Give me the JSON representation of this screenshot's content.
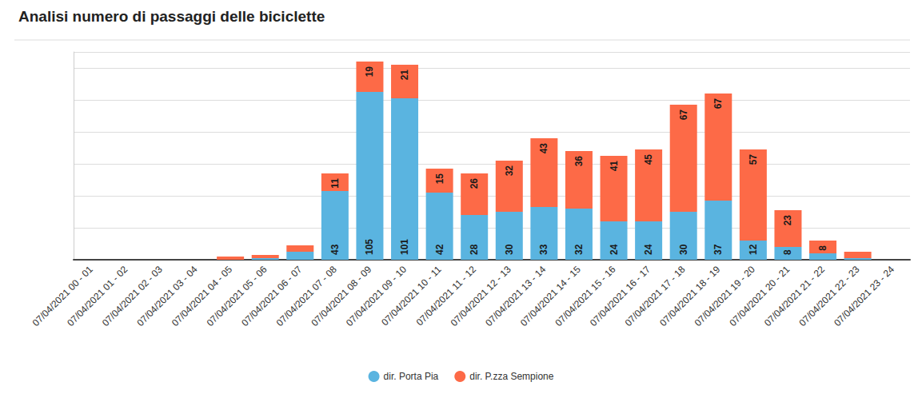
{
  "chart_data": {
    "type": "bar",
    "title": "Analisi numero di passaggi delle biciclette",
    "categories": [
      "07/04/2021 00 - 01",
      "07/04/2021 01 - 02",
      "07/04/2021 02 - 03",
      "07/04/2021 03 - 04",
      "07/04/2021 04 - 05",
      "07/04/2021 05 - 06",
      "07/04/2021 06 - 07",
      "07/04/2021 07 - 08",
      "07/04/2021 08 - 09",
      "07/04/2021 09 - 10",
      "07/04/2021 10 - 11",
      "07/04/2021 11 - 12",
      "07/04/2021 12 - 13",
      "07/04/2021 13 - 14",
      "07/04/2021 14 - 15",
      "07/04/2021 15 - 16",
      "07/04/2021 16 - 17",
      "07/04/2021 17 - 18",
      "07/04/2021 18 - 19",
      "07/04/2021 19 - 20",
      "07/04/2021 20 - 21",
      "07/04/2021 21 - 22",
      "07/04/2021 22 - 23",
      "07/04/2021 23 - 24"
    ],
    "series": [
      {
        "name": "dir. Porta Pia",
        "color": "#5ab4e0",
        "values": [
          0,
          0,
          0,
          0,
          0,
          1,
          5,
          43,
          105,
          101,
          42,
          28,
          30,
          33,
          32,
          24,
          24,
          30,
          37,
          12,
          8,
          4,
          1,
          0
        ],
        "value_labels": [
          null,
          null,
          null,
          null,
          null,
          null,
          null,
          "43",
          "105",
          "101",
          "42",
          "28",
          "30",
          "33",
          "32",
          "24",
          "24",
          "30",
          "37",
          "12",
          "8",
          null,
          null,
          null
        ]
      },
      {
        "name": "dir. P.zza Sempione",
        "color": "#fd6a47",
        "values": [
          0,
          0,
          0,
          0,
          2,
          2,
          4,
          11,
          19,
          21,
          15,
          26,
          32,
          43,
          36,
          41,
          45,
          67,
          67,
          57,
          23,
          8,
          4,
          0
        ],
        "value_labels": [
          null,
          null,
          null,
          null,
          null,
          null,
          null,
          "11",
          "19",
          "21",
          "15",
          "26",
          "32",
          "43",
          "36",
          "41",
          "45",
          "67",
          "67",
          "57",
          "23",
          "8",
          null,
          null
        ]
      }
    ],
    "ylim": [
      0,
      130
    ],
    "yticks": [
      0,
      20,
      40,
      60,
      80,
      100,
      120
    ],
    "grid": true,
    "stacked": true,
    "data_labels": true,
    "tick_labels": "x",
    "legend": "bottom"
  }
}
